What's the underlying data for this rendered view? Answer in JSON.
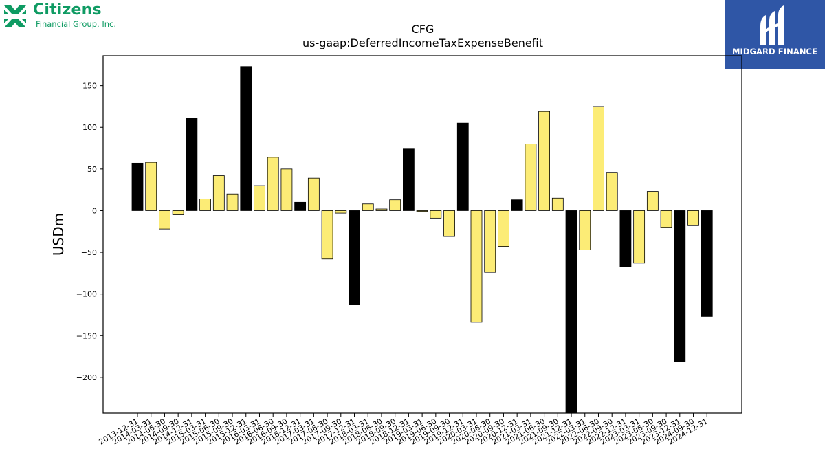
{
  "logos": {
    "left_name": "Citizens",
    "left_sub": "Financial Group, Inc.",
    "right_name": "MIDGARD FINANCE",
    "left_color": "#0f9b63",
    "right_bg": "#2f56a6"
  },
  "chart_data": {
    "type": "bar",
    "title": "CFG",
    "subtitle": "us-gaap:DeferredIncomeTaxExpenseBenefit",
    "xlabel": "",
    "ylabel": "USDm",
    "ylim": [
      -243,
      186
    ],
    "yticks": [
      150,
      100,
      50,
      0,
      -50,
      -100,
      -150,
      -200
    ],
    "grid": false,
    "colors": {
      "annual": "#000000",
      "quarterly": "#fcec76",
      "edge": "#000000"
    },
    "categories": [
      "2013-12-31",
      "2014-03-31",
      "2014-06-30",
      "2014-09-30",
      "2014-12-31",
      "2015-03-31",
      "2015-06-30",
      "2015-09-30",
      "2015-12-31",
      "2016-03-31",
      "2016-06-30",
      "2016-09-30",
      "2016-12-31",
      "2017-03-31",
      "2017-06-30",
      "2017-09-30",
      "2017-12-31",
      "2018-03-31",
      "2018-06-30",
      "2018-09-30",
      "2018-12-31",
      "2019-03-31",
      "2019-06-30",
      "2019-09-30",
      "2019-12-31",
      "2020-03-31",
      "2020-06-30",
      "2020-09-30",
      "2020-12-31",
      "2021-03-31",
      "2021-06-30",
      "2021-09-30",
      "2021-12-31",
      "2022-03-31",
      "2022-06-30",
      "2022-09-30",
      "2022-12-31",
      "2023-03-31",
      "2023-06-30",
      "2023-09-30",
      "2023-12-31",
      "2024-09-30",
      "2024-12-31"
    ],
    "values": [
      57,
      58,
      -22,
      -5,
      111,
      14,
      42,
      20,
      173,
      30,
      64,
      50,
      10,
      39,
      -58,
      -3,
      -113,
      8,
      2,
      13,
      74,
      -1,
      -9,
      -31,
      105,
      -134,
      -74,
      -43,
      13,
      80,
      119,
      15,
      -250,
      -47,
      125,
      46,
      -67,
      -63,
      23,
      -20,
      -181,
      -18,
      -127
    ],
    "annual_flags": [
      true,
      false,
      false,
      false,
      true,
      false,
      false,
      false,
      true,
      false,
      false,
      false,
      true,
      false,
      false,
      false,
      true,
      false,
      false,
      false,
      true,
      false,
      false,
      false,
      true,
      false,
      false,
      false,
      true,
      false,
      false,
      false,
      true,
      false,
      false,
      false,
      true,
      false,
      false,
      false,
      true,
      false,
      true
    ]
  }
}
